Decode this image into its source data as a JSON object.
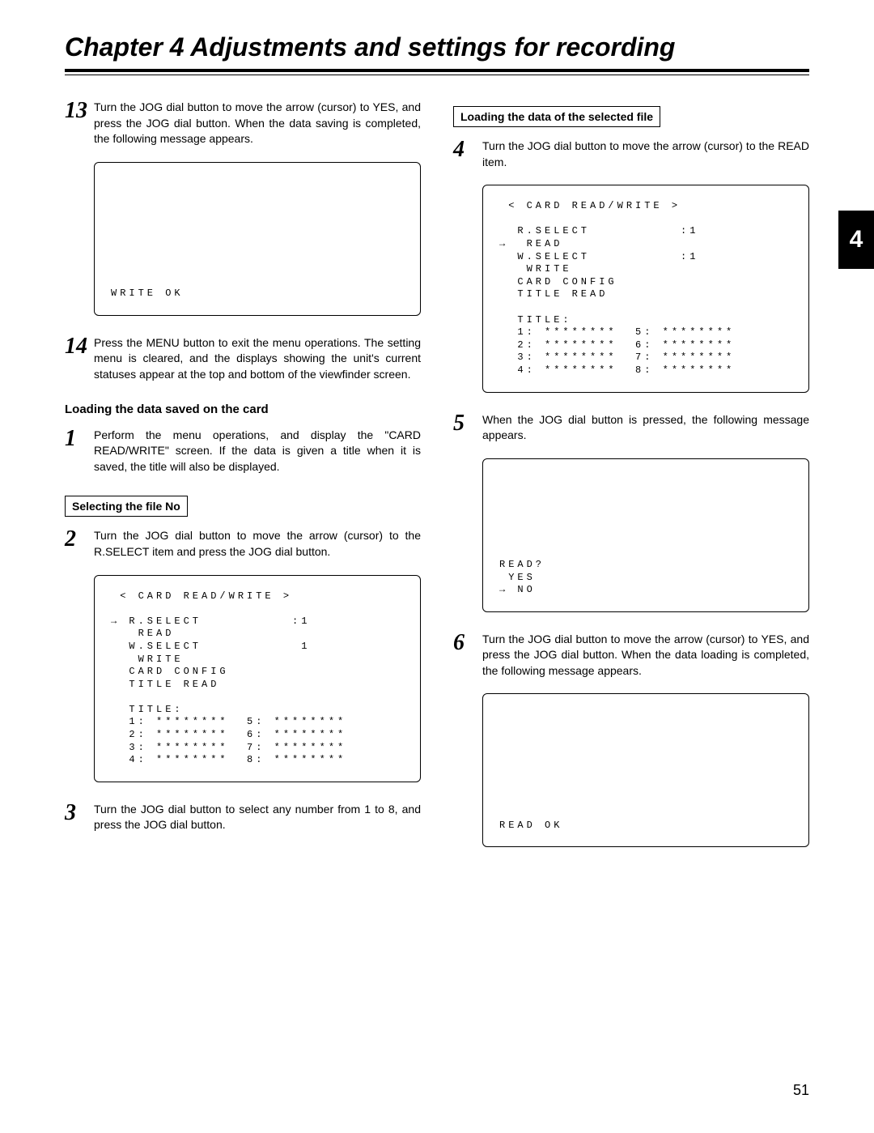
{
  "chapter_title": "Chapter 4  Adjustments and settings for recording",
  "side_tab": "4",
  "page_number": "51",
  "left": {
    "step13": {
      "num": "13",
      "text": "Turn the JOG dial button to move the arrow (cursor) to YES, and press the JOG dial button.\nWhen the data saving is completed, the following message appears."
    },
    "screen_write_ok": "WRITE OK",
    "step14": {
      "num": "14",
      "text": "Press the MENU button to exit the menu operations.\nThe setting menu is cleared, and the displays showing the unit's current statuses appear at the top and bottom of the viewfinder screen."
    },
    "heading_load_card": "Loading the data saved on the card",
    "step1": {
      "num": "1",
      "text": "Perform the menu operations, and display the \"CARD READ/WRITE\" screen.\nIf the data is given a title when it is saved, the title will also be displayed."
    },
    "box_select_file": "Selecting the file No",
    "step2": {
      "num": "2",
      "text": "Turn the JOG dial button to move the arrow (cursor) to the R.SELECT item and press the JOG dial button."
    },
    "screen_card_A": " < CARD READ/WRITE >\n\n→ R.SELECT          :1\n   READ\n  W.SELECT           1\n   WRITE\n  CARD CONFIG\n  TITLE READ\n\n  TITLE:\n  1: ********  5: ********\n  2: ********  6: ********\n  3: ********  7: ********\n  4: ********  8: ********",
    "step3": {
      "num": "3",
      "text": "Turn the JOG dial button to select any number from 1 to 8, and press the JOG dial button."
    }
  },
  "right": {
    "box_load_selected": "Loading the data of the selected file",
    "step4": {
      "num": "4",
      "text": "Turn the JOG dial button to move the arrow (cursor) to the READ item."
    },
    "screen_card_B": " < CARD READ/WRITE >\n\n  R.SELECT          :1\n→  READ\n  W.SELECT          :1\n   WRITE\n  CARD CONFIG\n  TITLE READ\n\n  TITLE:\n  1: ********  5: ********\n  2: ********  6: ********\n  3: ********  7: ********\n  4: ********  8: ********",
    "step5": {
      "num": "5",
      "text": "When the JOG dial button is pressed, the following message appears."
    },
    "screen_read_prompt": "READ?\n YES\n→ NO",
    "step6": {
      "num": "6",
      "text": "Turn the JOG dial button to move the arrow (cursor) to YES, and press the JOG dial button.\nWhen the data loading is completed, the following message appears."
    },
    "screen_read_ok": "READ OK"
  }
}
